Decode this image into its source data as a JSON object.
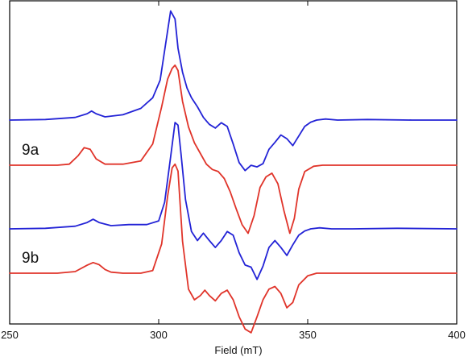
{
  "chart_data": {
    "type": "line",
    "xlabel": "Field (mT)",
    "ylabel": "",
    "xlim": [
      250,
      400
    ],
    "x_ticks": [
      250,
      300,
      350,
      400
    ],
    "x_tick_labels": [
      "250",
      "300",
      "350",
      "400"
    ],
    "y_ticks_shown": false,
    "grid": false,
    "legend": "none",
    "annotations": [
      "9a",
      "9b"
    ],
    "colors": {
      "experimental": "#2323d6",
      "simulated": "#e0342a",
      "axes": "#000000"
    },
    "series": [
      {
        "group": "9a",
        "kind": "experimental",
        "x": [
          250,
          262,
          272,
          276,
          277.5,
          279,
          282,
          288,
          294,
          298,
          300.5,
          302.5,
          304,
          305.5,
          306.5,
          308,
          309.5,
          311,
          313,
          315,
          317,
          319,
          321,
          323,
          325,
          327,
          329,
          331,
          333,
          335,
          337,
          339,
          341,
          343,
          345,
          347,
          349,
          351,
          353,
          356,
          360,
          370,
          385,
          400
        ],
        "y": [
          0,
          0.01,
          0.05,
          0.12,
          0.17,
          0.12,
          0.06,
          0.1,
          0.22,
          0.42,
          0.75,
          1.5,
          2.05,
          1.9,
          1.35,
          0.9,
          0.6,
          0.42,
          0.25,
          0.05,
          -0.08,
          -0.15,
          -0.05,
          -0.12,
          -0.45,
          -0.8,
          -0.95,
          -0.85,
          -0.88,
          -0.82,
          -0.55,
          -0.42,
          -0.28,
          -0.35,
          -0.48,
          -0.3,
          -0.12,
          -0.04,
          0.0,
          0.02,
          0.0,
          0.01,
          0.0,
          0.0
        ]
      },
      {
        "group": "9a",
        "kind": "simulated",
        "x": [
          250,
          266,
          270,
          273,
          275,
          277,
          279,
          282,
          288,
          294,
          298,
          301,
          303,
          304.5,
          305.5,
          306.5,
          308,
          310,
          312,
          314,
          316,
          318,
          320,
          322,
          324,
          326,
          328,
          330,
          332,
          334,
          336,
          338,
          340,
          342,
          344,
          345.5,
          347,
          349,
          352,
          355,
          360,
          400
        ],
        "y": [
          0,
          0.0,
          0.02,
          0.18,
          0.33,
          0.3,
          0.12,
          0.02,
          0.02,
          0.08,
          0.4,
          1.1,
          1.62,
          1.82,
          1.88,
          1.78,
          1.2,
          0.72,
          0.42,
          0.22,
          0.02,
          -0.08,
          -0.12,
          -0.25,
          -0.5,
          -0.82,
          -1.12,
          -1.28,
          -0.95,
          -0.42,
          -0.22,
          -0.15,
          -0.35,
          -0.85,
          -1.28,
          -1.0,
          -0.45,
          -0.12,
          -0.02,
          0.0,
          0.0,
          0.0
        ]
      },
      {
        "group": "9b",
        "kind": "experimental",
        "x": [
          250,
          262,
          272,
          276,
          278,
          280,
          284,
          290,
          296,
          300,
          302,
          304,
          305.5,
          306.5,
          307.5,
          309,
          311,
          313,
          315,
          317,
          319,
          321,
          323,
          325,
          327,
          329,
          331,
          333,
          335,
          337,
          339,
          341,
          343,
          345,
          347,
          349,
          351,
          354,
          358,
          365,
          380,
          400
        ],
        "y": [
          0,
          0.01,
          0.05,
          0.12,
          0.18,
          0.12,
          0.06,
          0.08,
          0.08,
          0.15,
          0.5,
          1.35,
          2.0,
          1.95,
          1.4,
          0.55,
          -0.05,
          -0.22,
          -0.08,
          -0.22,
          -0.35,
          -0.22,
          -0.05,
          -0.12,
          -0.45,
          -0.68,
          -0.72,
          -0.95,
          -0.7,
          -0.35,
          -0.22,
          -0.35,
          -0.5,
          -0.3,
          -0.12,
          -0.04,
          0.0,
          0.02,
          0.0,
          0.0,
          0.01,
          0.0
        ]
      },
      {
        "group": "9b",
        "kind": "simulated",
        "x": [
          250,
          266,
          272,
          276,
          278,
          280,
          282,
          284,
          288,
          294,
          298,
          301,
          303,
          304.5,
          305.5,
          306.5,
          308,
          310,
          312,
          314,
          315.5,
          317,
          319,
          321,
          323,
          325,
          327,
          329,
          331,
          333,
          335,
          337,
          339,
          341,
          343,
          345,
          347,
          350,
          353,
          358,
          400
        ],
        "y": [
          0,
          0.0,
          0.03,
          0.15,
          0.2,
          0.16,
          0.07,
          0.02,
          0.0,
          0.0,
          0.05,
          0.55,
          1.45,
          1.98,
          2.05,
          1.92,
          0.6,
          -0.3,
          -0.5,
          -0.42,
          -0.32,
          -0.42,
          -0.52,
          -0.38,
          -0.32,
          -0.5,
          -0.82,
          -1.05,
          -1.12,
          -0.82,
          -0.5,
          -0.3,
          -0.25,
          -0.38,
          -0.65,
          -0.55,
          -0.22,
          -0.05,
          0.0,
          0.0,
          0.0
        ]
      }
    ]
  }
}
